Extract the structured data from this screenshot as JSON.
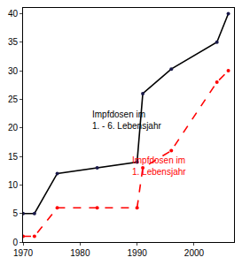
{
  "chart_data": {
    "type": "line",
    "xlim": [
      1970,
      2007
    ],
    "xticks": [
      1970,
      1980,
      1990,
      2000
    ],
    "ylim": [
      0,
      41
    ],
    "yticks": [
      0,
      5,
      10,
      15,
      20,
      25,
      30,
      35,
      40
    ],
    "grid": false,
    "series": [
      {
        "name": "Impfdosen im 1. - 6. Lebensjahr",
        "color": "#000000",
        "line_style": "solid",
        "marker": "circle",
        "x": [
          1970,
          1972,
          1976,
          1983,
          1990,
          1991,
          1996,
          2004,
          2006
        ],
        "values": [
          5,
          5,
          12,
          13,
          14,
          26,
          30.3,
          35,
          40
        ]
      },
      {
        "name": "Impfdosen im 1. Lebensjahr",
        "color": "#ff0000",
        "line_style": "dash",
        "marker": "circle",
        "x": [
          1970,
          1972,
          1976,
          1983,
          1990,
          1991,
          1996,
          2004,
          2006
        ],
        "values": [
          1,
          1,
          6,
          6,
          6,
          13,
          16,
          28,
          30
        ]
      }
    ]
  }
}
